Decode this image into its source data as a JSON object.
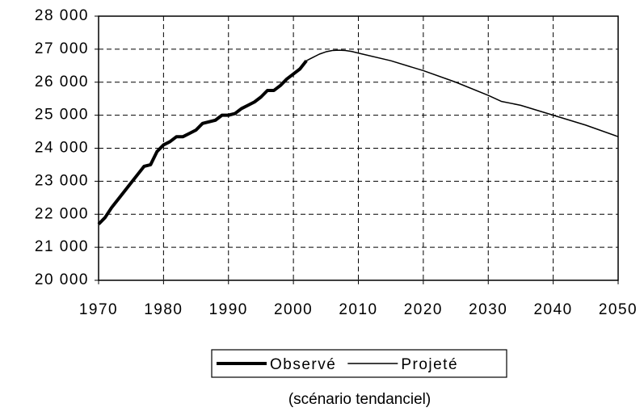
{
  "chart_data": {
    "type": "line",
    "subtitle": "(scénario tendanciel)",
    "xlim": [
      1970,
      2050
    ],
    "xticks": [
      1970,
      1980,
      1990,
      2000,
      2010,
      2020,
      2030,
      2040,
      2050
    ],
    "ylim": [
      20000,
      28000
    ],
    "yticks": [
      {
        "value": 20000,
        "label": "20 000"
      },
      {
        "value": 21000,
        "label": "21 000"
      },
      {
        "value": 22000,
        "label": "22 000"
      },
      {
        "value": 23000,
        "label": "23 000"
      },
      {
        "value": 24000,
        "label": "24 000"
      },
      {
        "value": 25000,
        "label": "25 000"
      },
      {
        "value": 26000,
        "label": "26 000"
      },
      {
        "value": 27000,
        "label": "27 000"
      },
      {
        "value": 28000,
        "label": "28 000"
      }
    ],
    "grid": true,
    "series": [
      {
        "name": "Observé",
        "color": "#000000",
        "width": 4,
        "x": [
          1970,
          1971,
          1972,
          1973,
          1974,
          1975,
          1976,
          1977,
          1978,
          1979,
          1980,
          1981,
          1982,
          1983,
          1984,
          1985,
          1986,
          1987,
          1988,
          1989,
          1990,
          1991,
          1992,
          1993,
          1994,
          1995,
          1996,
          1997,
          1998,
          1999,
          2000,
          2001,
          2002
        ],
        "values": [
          21700,
          21900,
          22200,
          22450,
          22700,
          22950,
          23200,
          23450,
          23500,
          23900,
          24100,
          24200,
          24350,
          24350,
          24450,
          24550,
          24750,
          24800,
          24850,
          25000,
          25000,
          25050,
          25200,
          25300,
          25400,
          25550,
          25750,
          25750,
          25900,
          26100,
          26250,
          26400,
          26650
        ]
      },
      {
        "name": "Projeté",
        "color": "#000000",
        "width": 1.5,
        "x": [
          2002,
          2003,
          2004,
          2005,
          2006,
          2007,
          2008,
          2009,
          2010,
          2015,
          2020,
          2025,
          2030,
          2032,
          2035,
          2040,
          2045,
          2050
        ],
        "values": [
          26650,
          26750,
          26850,
          26920,
          26960,
          26970,
          26960,
          26930,
          26880,
          26650,
          26350,
          26000,
          25600,
          25420,
          25300,
          25000,
          24700,
          24350
        ]
      }
    ]
  }
}
